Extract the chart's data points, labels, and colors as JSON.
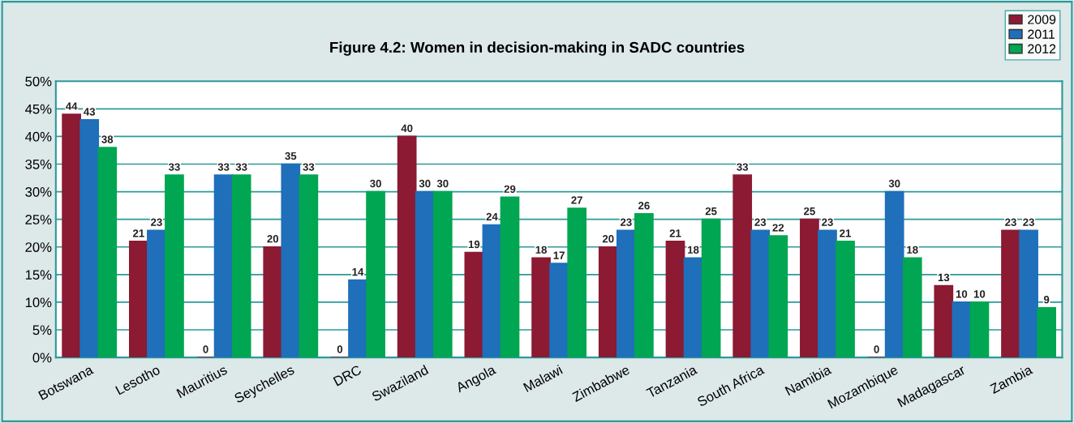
{
  "chart_data": {
    "type": "bar",
    "title": "Figure 4.2: Women in decision-making in SADC countries",
    "categories": [
      "Botswana",
      "Lesotho",
      "Mauritius",
      "Seychelles",
      "DRC",
      "Swaziland",
      "Angola",
      "Malawi",
      "Zimbabwe",
      "Tanzania",
      "South Africa",
      "Namibia",
      "Mozambique",
      "Madagascar",
      "Zambia"
    ],
    "series": [
      {
        "name": "2009",
        "color": "#8b1a32",
        "values": [
          44,
          21,
          0,
          20,
          0,
          40,
          19,
          18,
          20,
          21,
          33,
          25,
          0,
          13,
          23
        ]
      },
      {
        "name": "2011",
        "color": "#1f6fba",
        "values": [
          43,
          23,
          33,
          35,
          14,
          30,
          24,
          17,
          23,
          18,
          23,
          23,
          30,
          10,
          23
        ]
      },
      {
        "name": "2012",
        "color": "#00a651",
        "values": [
          38,
          33,
          33,
          33,
          30,
          30,
          29,
          27,
          26,
          25,
          22,
          21,
          18,
          10,
          9
        ]
      }
    ],
    "ylim": [
      0,
      50
    ],
    "yticks": [
      {
        "value": 0,
        "label": "0%"
      },
      {
        "value": 5,
        "label": "5%"
      },
      {
        "value": 10,
        "label": "10%"
      },
      {
        "value": 15,
        "label": "15%"
      },
      {
        "value": 20,
        "label": "20%"
      },
      {
        "value": 25,
        "label": "25%"
      },
      {
        "value": 30,
        "label": "30%"
      },
      {
        "value": 35,
        "label": "35%"
      },
      {
        "value": 40,
        "label": "40%"
      },
      {
        "value": 45,
        "label": "45%"
      },
      {
        "value": 50,
        "label": "50%"
      }
    ],
    "grid": "y",
    "legend": "top right",
    "data_labels": true
  }
}
